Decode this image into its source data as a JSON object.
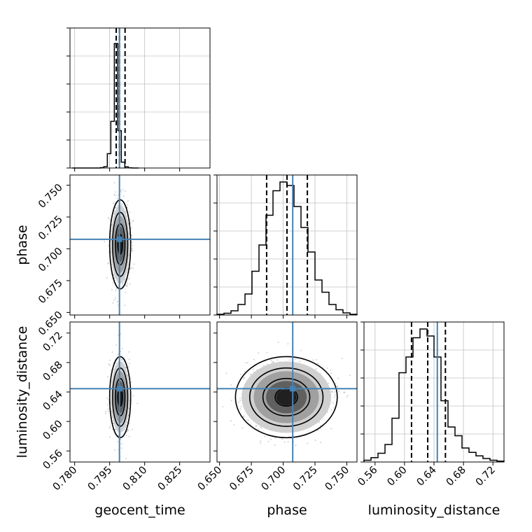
{
  "figure": {
    "type": "corner_plot"
  },
  "chart_data": [
    {
      "type": "histogram",
      "panel": "geocent_time-marginal",
      "variable": "geocent_time",
      "xlim": [
        0.778,
        0.838
      ],
      "xticks": [
        0.78,
        0.795,
        0.81,
        0.825
      ],
      "bin_edges": [
        0.779,
        0.7805,
        0.782,
        0.7835,
        0.785,
        0.7865,
        0.788,
        0.7895,
        0.791,
        0.7925,
        0.794,
        0.7955,
        0.797,
        0.7985,
        0.8,
        0.8015,
        0.803,
        0.8045,
        0.806,
        0.8075
      ],
      "counts": [
        0,
        0,
        0,
        0,
        0,
        0,
        0,
        0.5,
        4,
        17,
        185,
        600,
        1600,
        480,
        75,
        15,
        2,
        0,
        0
      ],
      "ylim": [
        0,
        1800
      ],
      "truth": 0.7992,
      "quantiles": [
        0.7978,
        0.7992,
        0.8016
      ]
    },
    {
      "type": "histogram",
      "panel": "phase-marginal",
      "variable": "phase",
      "xlim": [
        0.648,
        0.758
      ],
      "xticks": [
        0.65,
        0.675,
        0.7,
        0.725,
        0.75
      ],
      "bin_edges": [
        0.648,
        0.6535,
        0.659,
        0.6645,
        0.67,
        0.6755,
        0.681,
        0.6865,
        0.692,
        0.6975,
        0.703,
        0.7085,
        0.714,
        0.7195,
        0.725,
        0.7305,
        0.736,
        0.7415,
        0.747,
        0.7525,
        0.758
      ],
      "counts": [
        2,
        5,
        12,
        30,
        60,
        125,
        200,
        285,
        355,
        380,
        370,
        310,
        250,
        180,
        100,
        65,
        30,
        15,
        6,
        2
      ],
      "ylim": [
        0,
        400
      ],
      "truth": 0.7075,
      "quantiles": [
        0.687,
        0.703,
        0.719
      ]
    },
    {
      "type": "histogram",
      "panel": "luminosity_distance-marginal",
      "variable": "luminosity_distance",
      "xlim": [
        0.545,
        0.735
      ],
      "xticks": [
        0.56,
        0.6,
        0.64,
        0.68,
        0.72
      ],
      "bin_edges": [
        0.545,
        0.5545,
        0.564,
        0.5735,
        0.583,
        0.5925,
        0.602,
        0.6115,
        0.621,
        0.6305,
        0.64,
        0.6495,
        0.659,
        0.6685,
        0.678,
        0.6875,
        0.697,
        0.7065,
        0.716,
        0.7255,
        0.735
      ],
      "counts": [
        10,
        25,
        50,
        100,
        250,
        510,
        600,
        710,
        760,
        720,
        600,
        350,
        200,
        150,
        80,
        55,
        35,
        20,
        10,
        5
      ],
      "ylim": [
        0,
        800
      ],
      "truth": 0.6445,
      "quantiles": [
        0.6095,
        0.6315,
        0.6555
      ]
    },
    {
      "type": "scatter",
      "panel": "phase-vs-geocent_time",
      "x_variable": "geocent_time",
      "y_variable": "phase",
      "xlim": [
        0.778,
        0.838
      ],
      "ylim": [
        0.648,
        0.758
      ],
      "xticks": [
        0.78,
        0.795,
        0.81,
        0.825
      ],
      "yticks": [
        0.65,
        0.675,
        0.7,
        0.725,
        0.75
      ],
      "center": [
        0.7995,
        0.7035
      ],
      "spread": [
        0.0018,
        0.014
      ],
      "truth": [
        0.7992,
        0.7075
      ]
    },
    {
      "type": "scatter",
      "panel": "luminosity_distance-vs-geocent_time",
      "x_variable": "geocent_time",
      "y_variable": "luminosity_distance",
      "xlim": [
        0.778,
        0.838
      ],
      "ylim": [
        0.545,
        0.735
      ],
      "xticks": [
        0.78,
        0.795,
        0.81,
        0.825
      ],
      "yticks": [
        0.56,
        0.6,
        0.64,
        0.68,
        0.72
      ],
      "center": [
        0.7995,
        0.633
      ],
      "spread": [
        0.0018,
        0.022
      ],
      "truth": [
        0.7992,
        0.6445
      ]
    },
    {
      "type": "scatter",
      "panel": "luminosity_distance-vs-phase",
      "x_variable": "phase",
      "y_variable": "luminosity_distance",
      "xlim": [
        0.648,
        0.758
      ],
      "ylim": [
        0.545,
        0.735
      ],
      "xticks": [
        0.65,
        0.675,
        0.7,
        0.725,
        0.75
      ],
      "yticks": [
        0.56,
        0.6,
        0.64,
        0.68,
        0.72
      ],
      "center": [
        0.7025,
        0.633
      ],
      "spread": [
        0.016,
        0.022
      ],
      "truth": [
        0.7075,
        0.6445
      ]
    }
  ],
  "labels": {
    "x_geocent_time": "geocent_time",
    "x_phase": "phase",
    "x_luminosity_distance": "luminosity_distance",
    "y_phase": "phase",
    "y_luminosity_distance": "luminosity_distance"
  },
  "colors": {
    "truth": "#4682b4",
    "hist": "#000000",
    "grid": "#c0c0c0",
    "quantile": "#000000"
  }
}
